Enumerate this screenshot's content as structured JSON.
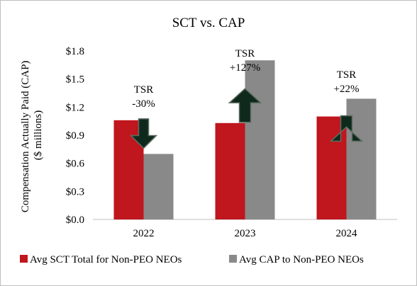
{
  "chart_data": {
    "type": "bar",
    "title": "SCT vs. CAP",
    "ylabel_line1": "Compensation Actually Paid (CAP)",
    "ylabel_line2": "($ millions)",
    "xlabel": "",
    "ylim": [
      0,
      1.8
    ],
    "yticks": [
      0,
      0.3,
      0.6,
      0.9,
      1.2,
      1.5,
      1.8
    ],
    "ytick_labels": [
      "$0.0",
      "$0.3",
      "$0.6",
      "$0.9",
      "$1.2",
      "$1.5",
      "$1.8"
    ],
    "categories": [
      "2022",
      "2023",
      "2024"
    ],
    "series": [
      {
        "name": "Avg SCT Total for Non-PEO NEOs",
        "color": "#c0161e",
        "values": [
          1.06,
          1.03,
          1.1
        ]
      },
      {
        "name": "Avg CAP to Non-PEO NEOs",
        "color": "#898989",
        "values": [
          0.7,
          1.7,
          1.29
        ]
      }
    ],
    "annotations": [
      {
        "category": "2022",
        "line1": "TSR",
        "line2": "-30%",
        "direction": "down"
      },
      {
        "category": "2023",
        "line1": "TSR",
        "line2": "+127%",
        "direction": "up"
      },
      {
        "category": "2024",
        "line1": "TSR",
        "line2": "+22%",
        "direction": "up"
      }
    ],
    "arrow_color": "#0f2a1c",
    "grid": false,
    "legend_position": "bottom"
  }
}
